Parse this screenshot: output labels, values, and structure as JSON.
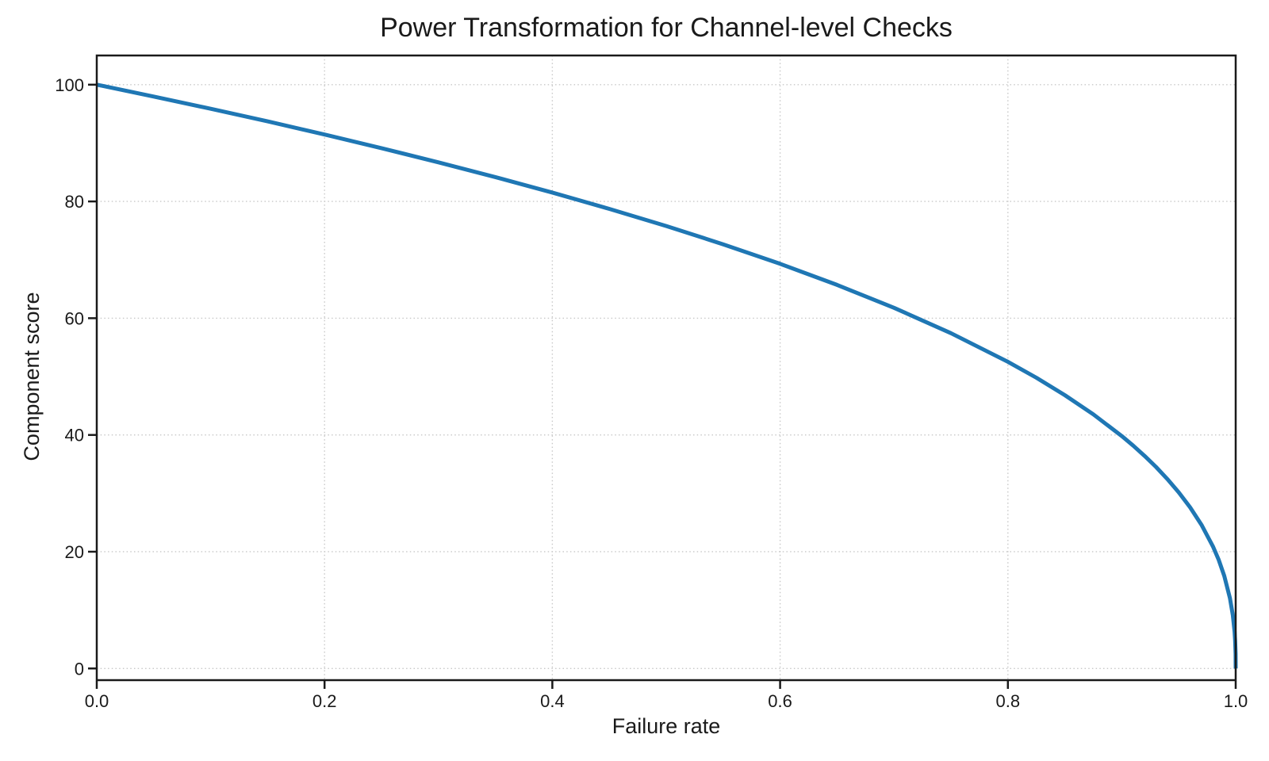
{
  "colors": {
    "background": "#ffffff",
    "text": "#1a1a1a",
    "spine": "#1a1a1a",
    "grid": "#c8c8c8",
    "line": "#1f77b4"
  },
  "chart_data": {
    "type": "line",
    "title": "Power Transformation for Channel-level Checks",
    "xlabel": "Failure rate",
    "ylabel": "Component score",
    "xlim": [
      0.0,
      1.0
    ],
    "ylim": [
      -2,
      105
    ],
    "xticks": [
      0.0,
      0.2,
      0.4,
      0.6,
      0.8,
      1.0
    ],
    "xtick_labels": [
      "0.0",
      "0.2",
      "0.4",
      "0.6",
      "0.8",
      "1.0"
    ],
    "yticks": [
      0,
      20,
      40,
      60,
      80,
      100
    ],
    "ytick_labels": [
      "0",
      "20",
      "40",
      "60",
      "80",
      "100"
    ],
    "grid": "dotted",
    "legend": "none",
    "series": [
      {
        "name": "component-score",
        "color": "#1f77b4",
        "line_width": 5,
        "points": [
          [
            0.0,
            100.0
          ],
          [
            0.05,
            97.97
          ],
          [
            0.1,
            95.87
          ],
          [
            0.15,
            93.71
          ],
          [
            0.2,
            91.46
          ],
          [
            0.25,
            89.13
          ],
          [
            0.3,
            86.7
          ],
          [
            0.35,
            84.17
          ],
          [
            0.4,
            81.52
          ],
          [
            0.45,
            78.73
          ],
          [
            0.5,
            75.79
          ],
          [
            0.55,
            72.66
          ],
          [
            0.6,
            69.31
          ],
          [
            0.65,
            65.71
          ],
          [
            0.7,
            61.78
          ],
          [
            0.75,
            57.43
          ],
          [
            0.8,
            52.53
          ],
          [
            0.825,
            49.8
          ],
          [
            0.85,
            46.82
          ],
          [
            0.875,
            43.53
          ],
          [
            0.9,
            39.81
          ],
          [
            0.91,
            38.17
          ],
          [
            0.92,
            36.41
          ],
          [
            0.93,
            34.52
          ],
          [
            0.94,
            32.45
          ],
          [
            0.95,
            30.17
          ],
          [
            0.96,
            27.59
          ],
          [
            0.97,
            24.6
          ],
          [
            0.98,
            20.91
          ],
          [
            0.985,
            18.64
          ],
          [
            0.99,
            15.85
          ],
          [
            0.995,
            12.01
          ],
          [
            0.9975,
            9.11
          ],
          [
            0.999,
            6.31
          ],
          [
            0.9995,
            4.78
          ],
          [
            0.9999,
            2.51
          ],
          [
            1.0,
            0.0
          ]
        ]
      }
    ]
  }
}
